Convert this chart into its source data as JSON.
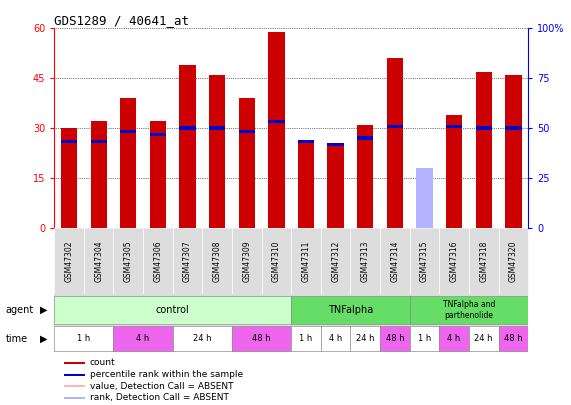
{
  "title": "GDS1289 / 40641_at",
  "samples": [
    "GSM47302",
    "GSM47304",
    "GSM47305",
    "GSM47306",
    "GSM47307",
    "GSM47308",
    "GSM47309",
    "GSM47310",
    "GSM47311",
    "GSM47312",
    "GSM47313",
    "GSM47314",
    "GSM47315",
    "GSM47316",
    "GSM47318",
    "GSM47320"
  ],
  "count_values": [
    30.0,
    32.0,
    39.0,
    32.0,
    49.0,
    46.0,
    39.0,
    59.0,
    26.0,
    25.0,
    31.0,
    51.0,
    17.0,
    34.0,
    47.0,
    46.0
  ],
  "rank_values": [
    26.0,
    26.0,
    29.0,
    28.0,
    30.0,
    30.0,
    29.0,
    32.0,
    26.0,
    25.0,
    27.0,
    30.5,
    18.0,
    30.5,
    30.0,
    30.0
  ],
  "absent_sample_idx": 12,
  "absent_count": 17.0,
  "absent_rank": 18.0,
  "left_ylim": [
    0,
    60
  ],
  "right_ylim": [
    0,
    100
  ],
  "left_yticks": [
    0,
    15,
    30,
    45,
    60
  ],
  "right_yticks": [
    0,
    25,
    50,
    75,
    100
  ],
  "right_yticklabels": [
    "0",
    "25",
    "50",
    "75",
    "100%"
  ],
  "bar_color": "#cc0000",
  "rank_color": "#0000cc",
  "absent_bar_color": "#ffb3b3",
  "absent_rank_color": "#b3b3ff",
  "bg_color": "#ffffff",
  "plot_bg_color": "#ffffff",
  "control_color": "#ccffcc",
  "tnf_color": "#66dd66",
  "time_pink": "#ee66ee",
  "time_white": "#ffffff",
  "agent_label_color": "#000000",
  "time_groups": [
    {
      "label": "1 h",
      "start": 0,
      "end": 2,
      "color": "#ffffff"
    },
    {
      "label": "4 h",
      "start": 2,
      "end": 4,
      "color": "#ee66ee"
    },
    {
      "label": "24 h",
      "start": 4,
      "end": 6,
      "color": "#ffffff"
    },
    {
      "label": "48 h",
      "start": 6,
      "end": 8,
      "color": "#ee66ee"
    },
    {
      "label": "1 h",
      "start": 8,
      "end": 9,
      "color": "#ffffff"
    },
    {
      "label": "4 h",
      "start": 9,
      "end": 10,
      "color": "#ffffff"
    },
    {
      "label": "24 h",
      "start": 10,
      "end": 11,
      "color": "#ffffff"
    },
    {
      "label": "48 h",
      "start": 11,
      "end": 12,
      "color": "#ee66ee"
    },
    {
      "label": "1 h",
      "start": 12,
      "end": 13,
      "color": "#ffffff"
    },
    {
      "label": "4 h",
      "start": 13,
      "end": 14,
      "color": "#ee66ee"
    },
    {
      "label": "24 h",
      "start": 14,
      "end": 15,
      "color": "#ffffff"
    },
    {
      "label": "48 h",
      "start": 15,
      "end": 16,
      "color": "#ee66ee"
    }
  ],
  "legend_items": [
    {
      "label": "count",
      "color": "#cc0000"
    },
    {
      "label": "percentile rank within the sample",
      "color": "#0000cc"
    },
    {
      "label": "value, Detection Call = ABSENT",
      "color": "#ffb3b3"
    },
    {
      "label": "rank, Detection Call = ABSENT",
      "color": "#b3b3ff"
    }
  ]
}
